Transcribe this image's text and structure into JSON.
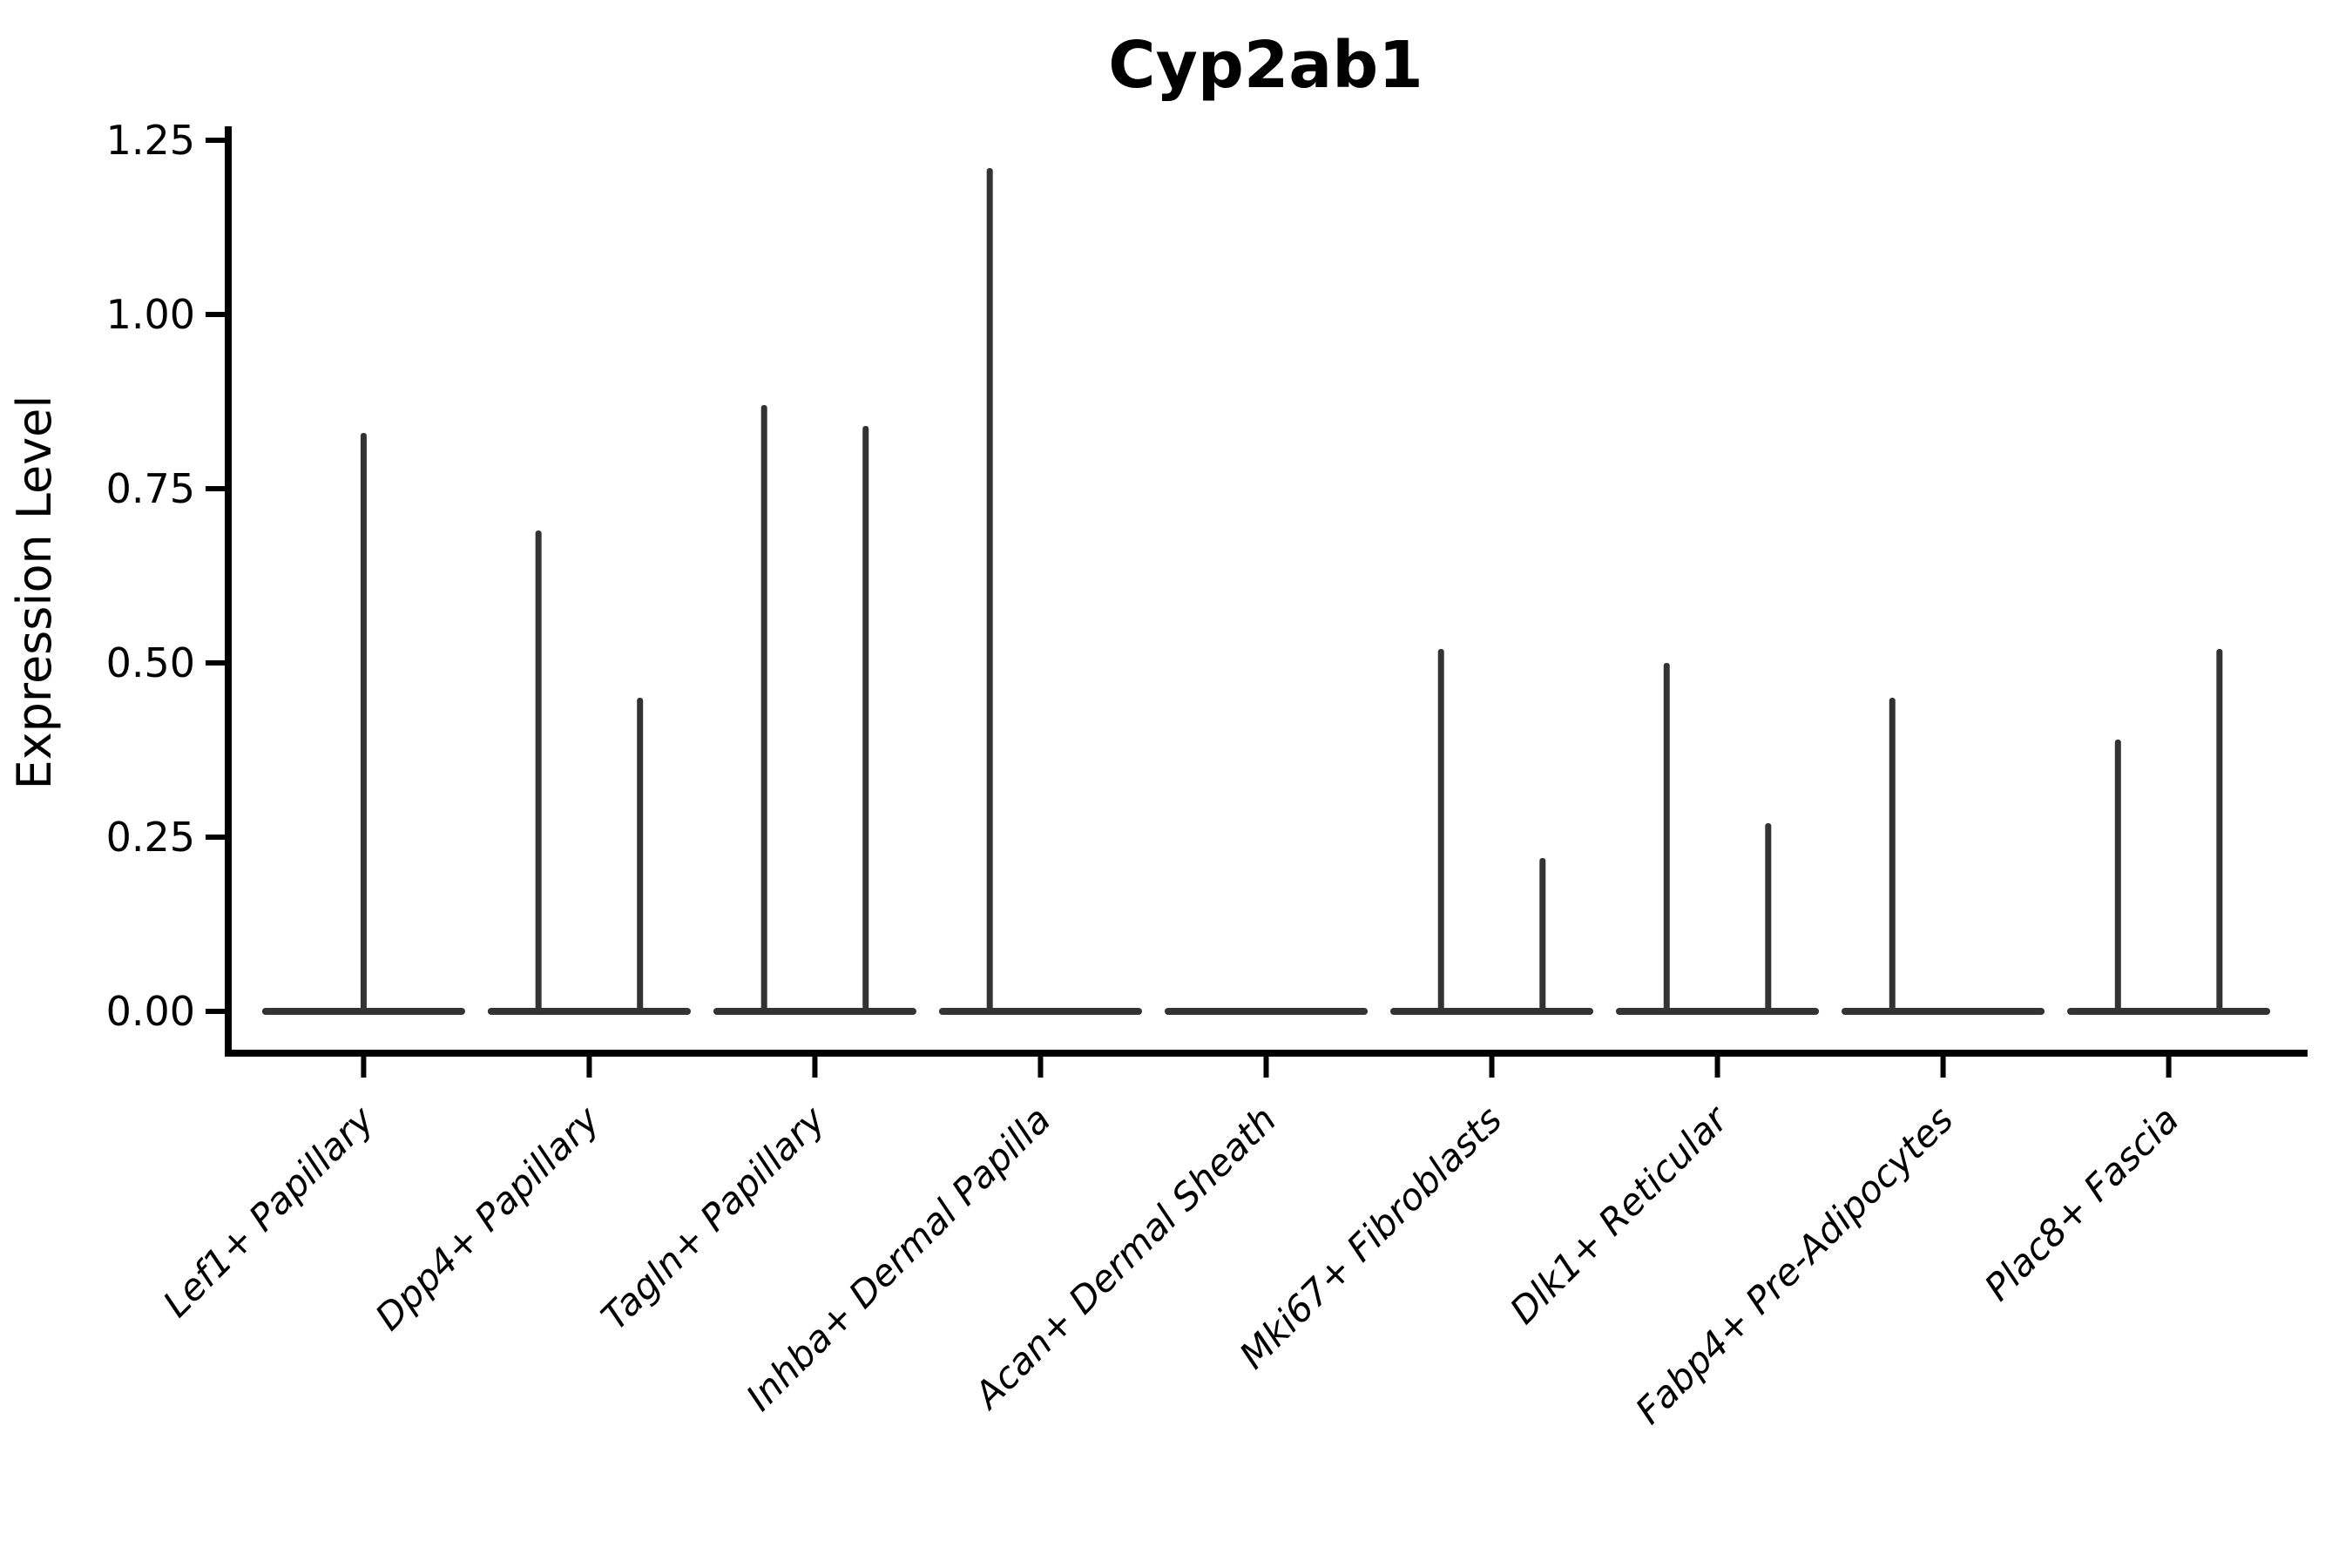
{
  "title": "Cyp2ab1",
  "y_axis": {
    "label": "Expression Level"
  },
  "colors": {
    "violin": "#333333",
    "axis": "#000000",
    "text": "#000000",
    "background": "#ffffff"
  },
  "chart_data": {
    "type": "violin",
    "title": "Cyp2ab1",
    "xlabel": "",
    "ylabel": "Expression Level",
    "ylim": [
      -0.06,
      1.27
    ],
    "grid": false,
    "legend": false,
    "yticks": [
      {
        "value": 0.0,
        "label": "0.00"
      },
      {
        "value": 0.25,
        "label": "0.25"
      },
      {
        "value": 0.5,
        "label": "0.50"
      },
      {
        "value": 0.75,
        "label": "0.75"
      },
      {
        "value": 1.0,
        "label": "1.00"
      },
      {
        "value": 1.25,
        "label": "1.25"
      }
    ],
    "description": "Violin plot of Cyp2ab1 expression; each cluster shows flat violins at 0 with thin density spikes reaching the maximum expressing-cell value",
    "categories": [
      {
        "label": "Lef1+ Papillary",
        "spikes": [
          {
            "pos": "center",
            "peak": 0.83
          }
        ]
      },
      {
        "label": "Dpp4+ Papillary",
        "spikes": [
          {
            "pos": "left",
            "peak": 0.69
          },
          {
            "pos": "right",
            "peak": 0.45
          }
        ]
      },
      {
        "label": "Tagln+ Papillary",
        "spikes": [
          {
            "pos": "left",
            "peak": 0.87
          },
          {
            "pos": "right",
            "peak": 0.84
          }
        ]
      },
      {
        "label": "Inhba+ Dermal Papilla",
        "spikes": [
          {
            "pos": "left",
            "peak": 1.21
          }
        ]
      },
      {
        "label": "Acan+ Dermal Sheath",
        "spikes": []
      },
      {
        "label": "Mki67+ Fibroblasts",
        "spikes": [
          {
            "pos": "left",
            "peak": 0.52
          },
          {
            "pos": "right",
            "peak": 0.22
          }
        ]
      },
      {
        "label": "Dlk1+ Reticular",
        "spikes": [
          {
            "pos": "left",
            "peak": 0.5
          },
          {
            "pos": "right",
            "peak": 0.27
          }
        ]
      },
      {
        "label": "Fabp4+ Pre-Adipocytes",
        "spikes": [
          {
            "pos": "left",
            "peak": 0.45
          }
        ]
      },
      {
        "label": "Plac8+ Fascia",
        "spikes": [
          {
            "pos": "left",
            "peak": 0.39
          },
          {
            "pos": "right",
            "peak": 0.52
          }
        ]
      }
    ]
  }
}
